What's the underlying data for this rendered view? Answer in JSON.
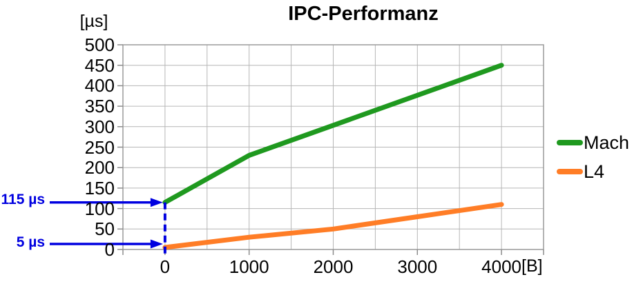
{
  "title": "IPC-Performanz",
  "y_axis": {
    "unit_label": "[µs]",
    "ticks": [
      0,
      50,
      100,
      150,
      200,
      250,
      300,
      350,
      400,
      450,
      500
    ]
  },
  "x_axis": {
    "unit_label": "[B]",
    "tick_values": [
      0,
      1000,
      2000,
      3000,
      4000
    ],
    "grid_step": 500
  },
  "legend": [
    {
      "label": "Mach",
      "color": "#1f991f"
    },
    {
      "label": "L4",
      "color": "#ff7d26"
    }
  ],
  "annotations": [
    {
      "label": "115 µs",
      "value": 115
    },
    {
      "label": "5 µs",
      "value": 5
    }
  ],
  "connector": {
    "x_value": 0,
    "from_value": 115,
    "to_value": 0
  },
  "colors": {
    "annotation_blue": "#0000e0",
    "gridline": "#b6b6b6",
    "axis_border": "#9a9a9a",
    "tick": "#8c8c8c",
    "mach_green": "#1f991f",
    "l4_orange": "#ff7d26"
  },
  "chart_data": {
    "type": "line",
    "title": "IPC-Performanz",
    "xlabel": "[B]",
    "ylabel": "[µs]",
    "xlim": [
      -500,
      4500
    ],
    "ylim": [
      0,
      500
    ],
    "x_tick_labels": [
      "0",
      "1000",
      "2000",
      "3000",
      "4000"
    ],
    "y_tick_step": 50,
    "grid": true,
    "legend_position": "right",
    "series": [
      {
        "name": "Mach",
        "color": "#1f991f",
        "points": [
          [
            0,
            115
          ],
          [
            1000,
            230
          ],
          [
            4000,
            450
          ]
        ]
      },
      {
        "name": "L4",
        "color": "#ff7d26",
        "points": [
          [
            0,
            5
          ],
          [
            1000,
            30
          ],
          [
            2000,
            50
          ],
          [
            3000,
            80
          ],
          [
            4000,
            110
          ]
        ]
      }
    ]
  }
}
